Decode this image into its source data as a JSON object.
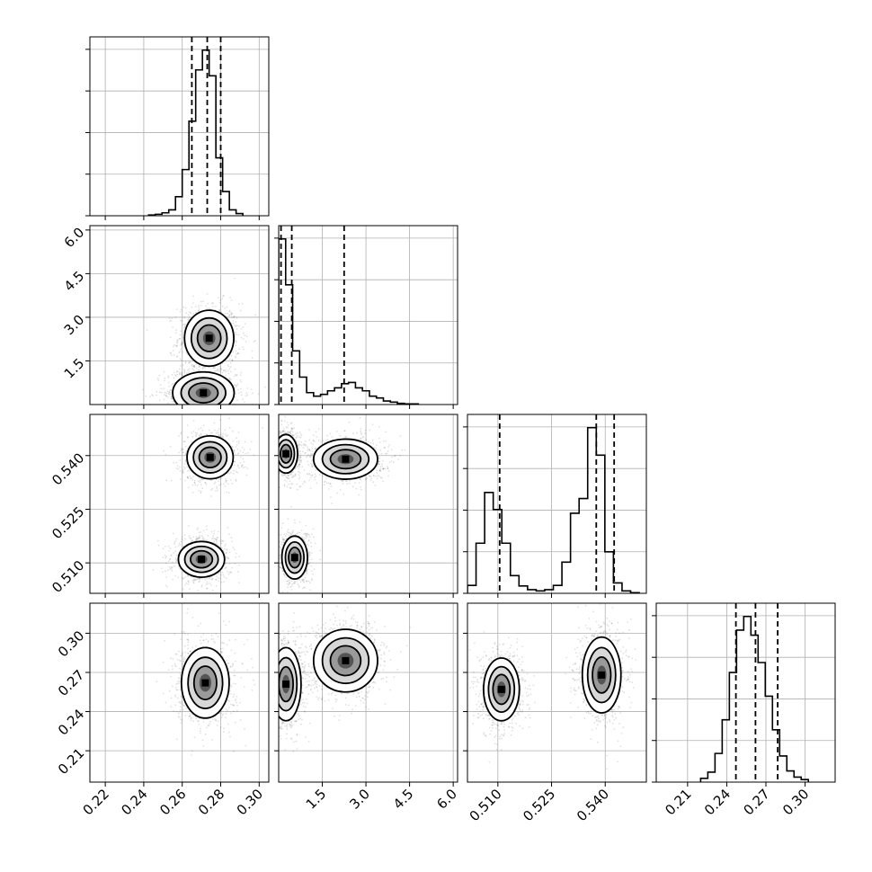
{
  "chart_data": {
    "type": "corner",
    "colors": {
      "marker": "#000000",
      "grid": "#b0b0b0",
      "background": "#ffffff"
    },
    "grid": true,
    "legend": "none",
    "parameters": [
      {
        "index": 0,
        "range": [
          0.212,
          0.305
        ],
        "ticks": [
          0.22,
          0.24,
          0.26,
          0.28,
          0.3
        ],
        "tick_labels": [
          "0.22",
          "0.24",
          "0.26",
          "0.28",
          "0.30"
        ],
        "quantiles": [
          0.265,
          0.273,
          0.28
        ]
      },
      {
        "index": 1,
        "range": [
          0.0,
          6.15
        ],
        "ticks": [
          1.5,
          3.0,
          4.5,
          6.0
        ],
        "tick_labels": [
          "1.5",
          "3.0",
          "4.5",
          "6.0"
        ],
        "quantiles": [
          0.08,
          0.45,
          2.25
        ]
      },
      {
        "index": 2,
        "range": [
          0.5015,
          0.5515
        ],
        "ticks": [
          0.51,
          0.525,
          0.54
        ],
        "tick_labels": [
          "0.510",
          "0.525",
          "0.540"
        ],
        "quantiles": [
          0.5105,
          0.5375,
          0.5425
        ]
      },
      {
        "index": 3,
        "range": [
          0.186,
          0.323
        ],
        "ticks": [
          0.21,
          0.24,
          0.27,
          0.3
        ],
        "tick_labels": [
          "0.21",
          "0.24",
          "0.27",
          "0.30"
        ],
        "quantiles": [
          0.247,
          0.262,
          0.279
        ]
      }
    ],
    "histograms": [
      {
        "param": 0,
        "bin_edges": [
          0.2425,
          0.246,
          0.2495,
          0.253,
          0.2565,
          0.26,
          0.2635,
          0.267,
          0.2705,
          0.274,
          0.2775,
          0.281,
          0.2845,
          0.288,
          0.2915
        ],
        "counts": [
          1,
          2,
          4,
          8,
          26,
          63,
          129,
          199,
          226,
          191,
          79,
          33,
          8,
          3
        ]
      },
      {
        "param": 1,
        "bin_edges": [
          0.0,
          0.24,
          0.48,
          0.72,
          0.96,
          1.2,
          1.44,
          1.68,
          1.92,
          2.16,
          2.4,
          2.64,
          2.88,
          3.12,
          3.36,
          3.6,
          3.84,
          4.08,
          4.32,
          4.56,
          4.8
        ],
        "counts": [
          278,
          201,
          90,
          46,
          20,
          14,
          17,
          23,
          28,
          35,
          37,
          28,
          23,
          14,
          11,
          6,
          4,
          2,
          1,
          1
        ]
      },
      {
        "param": 2,
        "bin_edges": [
          0.5015,
          0.5039,
          0.5063,
          0.5087,
          0.5111,
          0.5135,
          0.5159,
          0.5183,
          0.5207,
          0.5231,
          0.5255,
          0.5279,
          0.5303,
          0.5327,
          0.5351,
          0.5375,
          0.5399,
          0.5423,
          0.5447,
          0.5471,
          0.5495
        ],
        "counts": [
          13,
          82,
          165,
          137,
          82,
          29,
          12,
          6,
          4,
          6,
          13,
          51,
          131,
          155,
          271,
          226,
          68,
          17,
          4,
          1
        ]
      },
      {
        "param": 3,
        "bin_edges": [
          0.22,
          0.2255,
          0.231,
          0.2365,
          0.242,
          0.2475,
          0.253,
          0.2585,
          0.264,
          0.2695,
          0.275,
          0.2805,
          0.286,
          0.2915,
          0.297,
          0.3025
        ],
        "counts": [
          3,
          8,
          23,
          50,
          88,
          122,
          133,
          118,
          96,
          69,
          42,
          21,
          9,
          4,
          2
        ]
      }
    ],
    "joint_panels": [
      {
        "x": 0,
        "y": 1,
        "modes": [
          {
            "center": [
              0.274,
              2.28
            ],
            "spread": [
              0.0064,
              0.48
            ]
          },
          {
            "center": [
              0.271,
              0.4
            ],
            "spread": [
              0.008,
              0.36
            ]
          }
        ]
      },
      {
        "x": 0,
        "y": 2,
        "modes": [
          {
            "center": [
              0.2745,
              0.5395
            ],
            "spread": [
              0.006,
              0.003
            ]
          },
          {
            "center": [
              0.27,
              0.511
            ],
            "spread": [
              0.006,
              0.0025
            ]
          }
        ]
      },
      {
        "x": 1,
        "y": 2,
        "modes": [
          {
            "center": [
              0.25,
              0.5405
            ],
            "spread": [
              0.2,
              0.0027
            ]
          },
          {
            "center": [
              2.3,
              0.539
            ],
            "spread": [
              0.55,
              0.0028
            ]
          },
          {
            "center": [
              0.55,
              0.5115
            ],
            "spread": [
              0.22,
              0.003
            ]
          }
        ]
      },
      {
        "x": 0,
        "y": 3,
        "modes": [
          {
            "center": [
              0.272,
              0.262
            ],
            "spread": [
              0.0062,
              0.0135
            ]
          }
        ]
      },
      {
        "x": 1,
        "y": 3,
        "modes": [
          {
            "center": [
              0.25,
              0.261
            ],
            "spread": [
              0.26,
              0.014
            ]
          },
          {
            "center": [
              2.3,
              0.279
            ],
            "spread": [
              0.55,
              0.012
            ]
          }
        ]
      },
      {
        "x": 2,
        "y": 3,
        "modes": [
          {
            "center": [
              0.511,
              0.257
            ],
            "spread": [
              0.0025,
              0.012
            ]
          },
          {
            "center": [
              0.539,
              0.268
            ],
            "spread": [
              0.0027,
              0.0145
            ]
          }
        ]
      }
    ]
  }
}
